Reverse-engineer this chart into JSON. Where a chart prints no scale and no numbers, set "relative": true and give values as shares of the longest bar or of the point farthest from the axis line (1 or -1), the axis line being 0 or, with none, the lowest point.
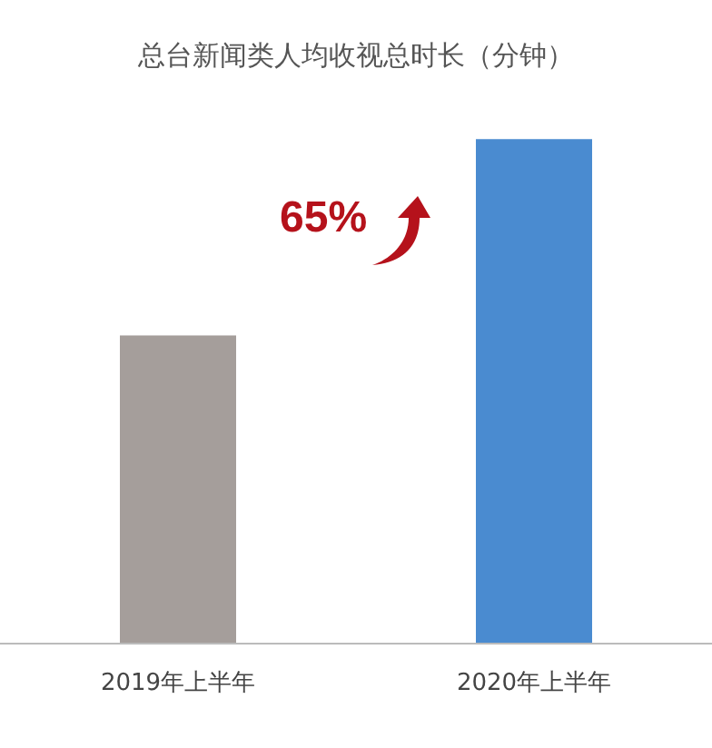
{
  "chart_data": {
    "type": "bar",
    "title": "总台新闻类人均收视总时长（分钟）",
    "categories": [
      "2019年上半年",
      "2020年上半年"
    ],
    "values": [
      0.61,
      1
    ],
    "colors": [
      "#a59e9b",
      "#4a8bd0"
    ],
    "relative": true,
    "annotations": [
      "65%"
    ]
  }
}
